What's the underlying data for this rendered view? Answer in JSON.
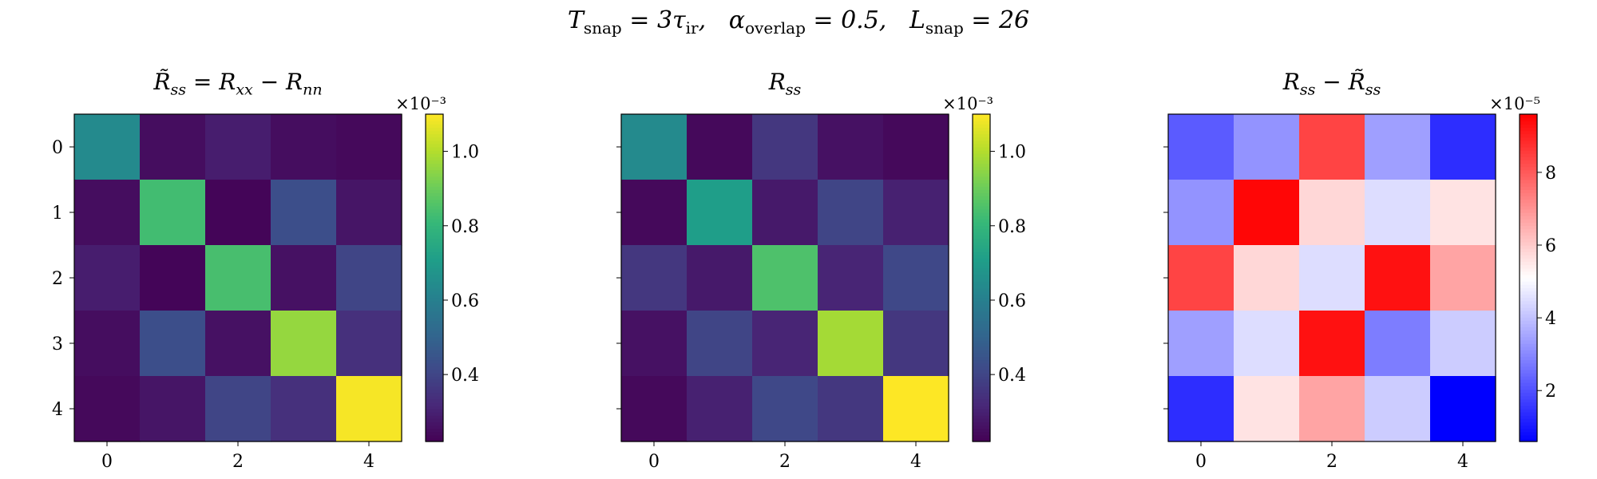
{
  "suptitle": "T_snap = 3τ_ir,   α_overlap = 0.5,   L_snap = 26",
  "chart_data": [
    {
      "type": "heatmap",
      "title": "R̃_ss = R_xx − R_nn",
      "x_ticks": [
        0,
        2,
        4
      ],
      "y_ticks": [
        0,
        1,
        2,
        3,
        4
      ],
      "colormap": "viridis",
      "colorbar": {
        "range": [
          0.22,
          1.1
        ],
        "ticks": [
          0.4,
          0.6,
          0.8,
          1.0
        ],
        "tick_labels": [
          "0.4",
          "0.6",
          "0.8",
          "1.0"
        ],
        "multiplier": "×10⁻³"
      },
      "matrix": [
        [
          0.64,
          0.25,
          0.29,
          0.25,
          0.24
        ],
        [
          0.25,
          0.83,
          0.23,
          0.43,
          0.27
        ],
        [
          0.29,
          0.23,
          0.84,
          0.26,
          0.4
        ],
        [
          0.25,
          0.43,
          0.26,
          0.96,
          0.34
        ],
        [
          0.24,
          0.27,
          0.4,
          0.34,
          1.09
        ]
      ]
    },
    {
      "type": "heatmap",
      "title": "R_ss",
      "x_ticks": [
        0,
        2,
        4
      ],
      "y_ticks": [
        0,
        1,
        2,
        3,
        4
      ],
      "colormap": "viridis",
      "colorbar": {
        "range": [
          0.22,
          1.1
        ],
        "ticks": [
          0.4,
          0.6,
          0.8,
          1.0
        ],
        "tick_labels": [
          "0.4",
          "0.6",
          "0.8",
          "1.0"
        ],
        "multiplier": "×10⁻³"
      },
      "matrix": [
        [
          0.64,
          0.24,
          0.36,
          0.26,
          0.24
        ],
        [
          0.24,
          0.71,
          0.28,
          0.4,
          0.3
        ],
        [
          0.36,
          0.28,
          0.85,
          0.31,
          0.41
        ],
        [
          0.26,
          0.4,
          0.31,
          0.98,
          0.36
        ],
        [
          0.24,
          0.3,
          0.41,
          0.36,
          1.1
        ]
      ]
    },
    {
      "type": "heatmap",
      "title": "R_ss − R̃_ss",
      "x_ticks": [
        0,
        2,
        4
      ],
      "y_ticks": [
        0,
        1,
        2,
        3,
        4
      ],
      "colormap": "bwr",
      "colorbar": {
        "range": [
          0.6,
          9.6
        ],
        "ticks": [
          2,
          4,
          6,
          8
        ],
        "tick_labels": [
          "2",
          "4",
          "6",
          "8"
        ],
        "multiplier": "×10⁻⁵"
      },
      "matrix": [
        [
          2.2,
          3.2,
          8.4,
          3.4,
          1.4
        ],
        [
          3.2,
          9.5,
          5.8,
          4.5,
          5.6
        ],
        [
          8.4,
          5.8,
          4.5,
          9.3,
          6.7
        ],
        [
          3.4,
          4.5,
          9.3,
          2.8,
          4.2
        ],
        [
          1.4,
          5.6,
          6.7,
          4.2,
          0.6
        ]
      ]
    }
  ]
}
